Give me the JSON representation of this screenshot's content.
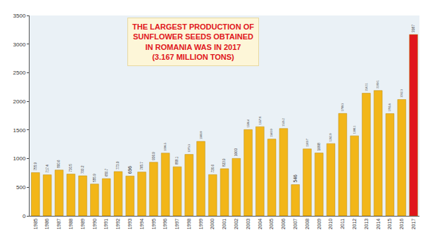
{
  "chart_data": {
    "type": "bar",
    "annotation": "THE LARGEST PRODUCTION OF SUNFLOWER SEEDS OBTAINED IN ROMANIA WAS IN 2017 (3.167 MILLION TONS)",
    "categories": [
      "1985",
      "1986",
      "1987",
      "1988",
      "1989",
      "1990",
      "1991",
      "1992",
      "1993",
      "1994",
      "1995",
      "1996",
      "1997",
      "1998",
      "1999",
      "2000",
      "2001",
      "2002",
      "2003",
      "2004",
      "2005",
      "2006",
      "2007",
      "2008",
      "2009",
      "2010",
      "2011",
      "2012",
      "2013",
      "2014",
      "2015",
      "2016",
      "2017"
    ],
    "values": [
      755.9,
      717.4,
      800.6,
      730.5,
      700.2,
      555.9,
      650.7,
      773.9,
      696.0,
      765.7,
      936.9,
      1096.5,
      858.1,
      1073.3,
      1300.9,
      720.6,
      823.9,
      1003.0,
      1506.4,
      1557.8,
      1340.9,
      1526.2,
      546.0,
      1169.7,
      1098.0,
      1262.9,
      1789.3,
      1398.1,
      2142.1,
      2189.1,
      1785.6,
      2032.3,
      3167
    ],
    "colors": [
      "#f2b619",
      "#f2b619",
      "#f2b619",
      "#f2b619",
      "#f2b619",
      "#f2b619",
      "#f2b619",
      "#f2b619",
      "#f2b619",
      "#f2b619",
      "#f2b619",
      "#f2b619",
      "#f2b619",
      "#f2b619",
      "#f2b619",
      "#f2b619",
      "#f2b619",
      "#f2b619",
      "#f2b619",
      "#f2b619",
      "#f2b619",
      "#f2b619",
      "#f2b619",
      "#f2b619",
      "#f2b619",
      "#f2b619",
      "#f2b619",
      "#f2b619",
      "#f2b619",
      "#f2b619",
      "#f2b619",
      "#f2b619",
      "#e0161d"
    ],
    "ylim": [
      0,
      3500
    ],
    "yticks": [
      0,
      500,
      1000,
      1500,
      2000,
      2500,
      3000,
      3500
    ],
    "grid": false,
    "data_labels": true
  }
}
